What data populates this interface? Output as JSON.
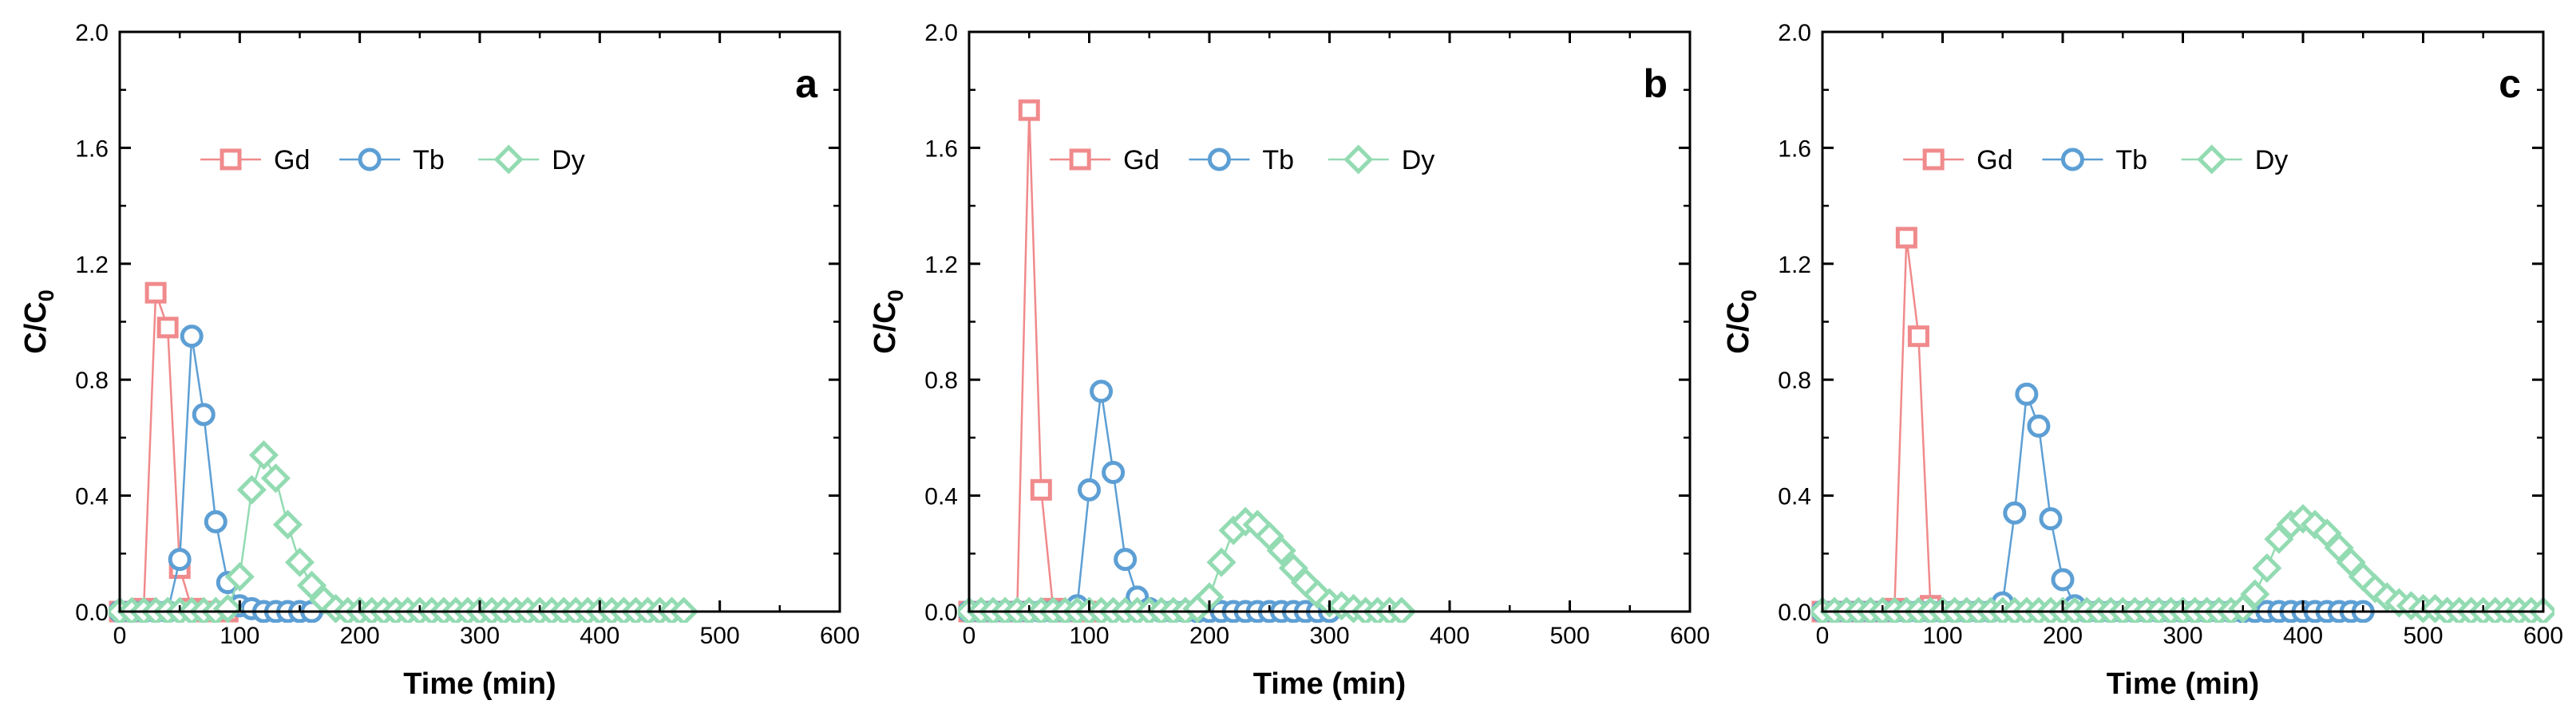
{
  "colors": {
    "Gd": "#f08a8c",
    "Tb": "#5d9fd4",
    "Dy": "#93dbb2",
    "axis": "#000000"
  },
  "series_meta": [
    {
      "name": "Gd",
      "marker": "square"
    },
    {
      "name": "Tb",
      "marker": "circle"
    },
    {
      "name": "Dy",
      "marker": "diamond"
    }
  ],
  "chart_data": [
    {
      "type": "line",
      "panel_label": "a",
      "xlabel": "Time (min)",
      "ylabel": "C/C0",
      "ylabel_main": "C/C",
      "ylabel_sub": "0",
      "xlim": [
        0,
        600
      ],
      "ylim": [
        0,
        2.0
      ],
      "xticks": [
        0,
        100,
        200,
        300,
        400,
        500,
        600
      ],
      "yticks": [
        0.0,
        0.4,
        0.8,
        1.2,
        1.6,
        2.0
      ],
      "ytick_labels": [
        "0.0",
        "0.4",
        "0.8",
        "1.2",
        "1.6",
        "2.0"
      ],
      "legend": [
        "Gd",
        "Tb",
        "Dy"
      ],
      "legend_position": "top-center",
      "series": [
        {
          "name": "Gd",
          "x": [
            0,
            10,
            20,
            30,
            40,
            50,
            60,
            70,
            80,
            90
          ],
          "y": [
            0,
            0,
            0.01,
            1.1,
            0.98,
            0.15,
            0.01,
            0,
            0,
            0
          ]
        },
        {
          "name": "Tb",
          "x": [
            0,
            10,
            20,
            30,
            40,
            50,
            60,
            70,
            80,
            90,
            100,
            110,
            120,
            130,
            140,
            150,
            160
          ],
          "y": [
            0,
            0,
            0,
            0,
            0,
            0.18,
            0.95,
            0.68,
            0.31,
            0.1,
            0.02,
            0.01,
            0,
            0,
            0,
            0,
            0
          ]
        },
        {
          "name": "Dy",
          "x": [
            0,
            10,
            20,
            30,
            40,
            50,
            60,
            70,
            80,
            90,
            100,
            110,
            120,
            130,
            140,
            150,
            160,
            170,
            180,
            190,
            200,
            210,
            220,
            230,
            240,
            250,
            260,
            270,
            280,
            290,
            300,
            310,
            320,
            330,
            340,
            350,
            360,
            370,
            380,
            390,
            400,
            410,
            420,
            430,
            440,
            450,
            460,
            470
          ],
          "y": [
            0,
            0,
            0,
            0,
            0,
            0,
            0,
            0,
            0,
            0.01,
            0.12,
            0.42,
            0.54,
            0.46,
            0.3,
            0.17,
            0.09,
            0.04,
            0.01,
            0,
            0,
            0,
            0,
            0,
            0,
            0,
            0,
            0,
            0,
            0,
            0,
            0,
            0,
            0,
            0,
            0,
            0,
            0,
            0,
            0,
            0,
            0,
            0,
            0,
            0,
            0,
            0,
            0
          ]
        }
      ]
    },
    {
      "type": "line",
      "panel_label": "b",
      "xlabel": "Time (min)",
      "ylabel": "C/C0",
      "ylabel_main": "C/C",
      "ylabel_sub": "0",
      "xlim": [
        0,
        600
      ],
      "ylim": [
        0,
        2.0
      ],
      "xticks": [
        0,
        100,
        200,
        300,
        400,
        500,
        600
      ],
      "yticks": [
        0.0,
        0.4,
        0.8,
        1.2,
        1.6,
        2.0
      ],
      "ytick_labels": [
        "0.0",
        "0.4",
        "0.8",
        "1.2",
        "1.6",
        "2.0"
      ],
      "legend": [
        "Gd",
        "Tb",
        "Dy"
      ],
      "legend_position": "top-center",
      "series": [
        {
          "name": "Gd",
          "x": [
            0,
            10,
            20,
            30,
            40,
            50,
            60,
            70,
            80,
            90,
            100
          ],
          "y": [
            0,
            0,
            0,
            0,
            0,
            1.73,
            0.42,
            0.01,
            0,
            0,
            0
          ]
        },
        {
          "name": "Tb",
          "x": [
            0,
            10,
            20,
            30,
            40,
            50,
            60,
            70,
            80,
            90,
            100,
            110,
            120,
            130,
            140,
            150,
            160,
            170,
            180,
            190,
            200,
            210,
            220,
            230,
            240,
            250,
            260,
            270,
            280,
            290,
            300
          ],
          "y": [
            0,
            0,
            0,
            0,
            0,
            0,
            0,
            0,
            0,
            0.02,
            0.42,
            0.76,
            0.48,
            0.18,
            0.05,
            0.01,
            0,
            0,
            0,
            0,
            0,
            0,
            0,
            0,
            0,
            0,
            0,
            0,
            0,
            0,
            0
          ]
        },
        {
          "name": "Dy",
          "x": [
            0,
            10,
            20,
            30,
            40,
            50,
            60,
            70,
            80,
            90,
            100,
            110,
            120,
            130,
            140,
            150,
            160,
            170,
            180,
            190,
            200,
            210,
            220,
            230,
            240,
            250,
            260,
            270,
            280,
            290,
            300,
            310,
            320,
            330,
            340,
            350,
            360
          ],
          "y": [
            0,
            0,
            0,
            0,
            0,
            0,
            0,
            0,
            0,
            0,
            0,
            0,
            0,
            0,
            0,
            0,
            0,
            0,
            0,
            0.01,
            0.05,
            0.17,
            0.28,
            0.31,
            0.3,
            0.26,
            0.21,
            0.15,
            0.1,
            0.06,
            0.03,
            0.02,
            0.01,
            0,
            0,
            0,
            0
          ]
        }
      ]
    },
    {
      "type": "line",
      "panel_label": "c",
      "xlabel": "Time (min)",
      "ylabel": "C/C0",
      "ylabel_main": "C/C",
      "ylabel_sub": "0",
      "xlim": [
        0,
        600
      ],
      "ylim": [
        0,
        2.0
      ],
      "xticks": [
        0,
        100,
        200,
        300,
        400,
        500,
        600
      ],
      "yticks": [
        0.0,
        0.4,
        0.8,
        1.2,
        1.6,
        2.0
      ],
      "ytick_labels": [
        "0.0",
        "0.4",
        "0.8",
        "1.2",
        "1.6",
        "2.0"
      ],
      "legend": [
        "Gd",
        "Tb",
        "Dy"
      ],
      "legend_position": "top-center",
      "series": [
        {
          "name": "Gd",
          "x": [
            0,
            10,
            20,
            30,
            40,
            50,
            60,
            70,
            80,
            90
          ],
          "y": [
            0,
            0,
            0,
            0,
            0,
            0,
            0.01,
            1.29,
            0.95,
            0.02
          ]
        },
        {
          "name": "Tb",
          "x": [
            0,
            10,
            20,
            30,
            40,
            50,
            60,
            70,
            80,
            90,
            100,
            110,
            120,
            130,
            140,
            150,
            160,
            170,
            180,
            190,
            200,
            210,
            220,
            230,
            240,
            250,
            260,
            270,
            280,
            290,
            300,
            310,
            320,
            330,
            340,
            350,
            360,
            370,
            380,
            390,
            400,
            410,
            420,
            430,
            440,
            450
          ],
          "y": [
            0,
            0,
            0,
            0,
            0,
            0,
            0,
            0,
            0,
            0,
            0,
            0,
            0,
            0,
            0,
            0.03,
            0.34,
            0.75,
            0.64,
            0.32,
            0.11,
            0.02,
            0,
            0,
            0,
            0,
            0,
            0,
            0,
            0,
            0,
            0,
            0,
            0,
            0,
            0,
            0,
            0,
            0,
            0,
            0,
            0,
            0,
            0,
            0,
            0
          ]
        },
        {
          "name": "Dy",
          "x": [
            0,
            10,
            20,
            30,
            40,
            50,
            60,
            70,
            80,
            90,
            100,
            110,
            120,
            130,
            140,
            150,
            160,
            170,
            180,
            190,
            200,
            210,
            220,
            230,
            240,
            250,
            260,
            270,
            280,
            290,
            300,
            310,
            320,
            330,
            340,
            350,
            360,
            370,
            380,
            390,
            400,
            410,
            420,
            430,
            440,
            450,
            460,
            470,
            480,
            490,
            500,
            510,
            520,
            530,
            540,
            550,
            560,
            570,
            580,
            590,
            600
          ],
          "y": [
            0,
            0,
            0,
            0,
            0,
            0,
            0,
            0,
            0,
            0,
            0,
            0,
            0,
            0,
            0,
            0,
            0,
            0,
            0,
            0,
            0,
            0,
            0,
            0,
            0,
            0,
            0,
            0,
            0,
            0,
            0,
            0,
            0,
            0,
            0,
            0.01,
            0.06,
            0.15,
            0.25,
            0.3,
            0.32,
            0.3,
            0.27,
            0.22,
            0.17,
            0.12,
            0.08,
            0.05,
            0.03,
            0.02,
            0.01,
            0.01,
            0,
            0,
            0,
            0,
            0,
            0,
            0,
            0,
            0
          ]
        }
      ]
    }
  ]
}
